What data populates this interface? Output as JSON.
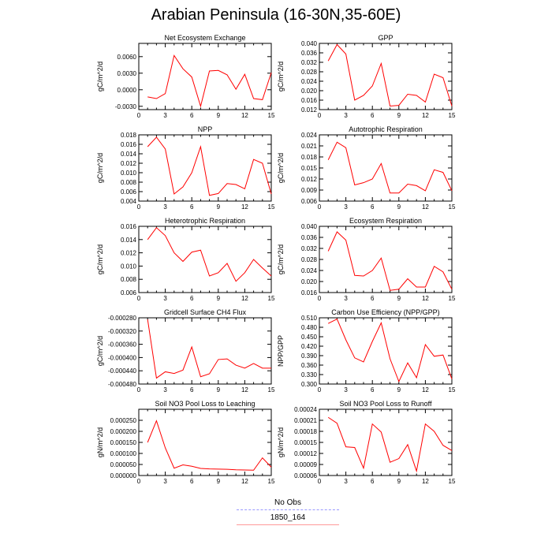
{
  "page": {
    "title": "Arabian Peninsula (16-30N,35-60E)"
  },
  "legend": {
    "entries": [
      {
        "label": "No Obs",
        "color": "#9999ff",
        "style": "dashed"
      },
      {
        "label": "1850_164",
        "color": "#ff9a9a",
        "style": "solid"
      }
    ]
  },
  "chart_data": [
    {
      "type": "line",
      "title": "Net Ecosystem Exchange",
      "ylabel": "gC/m^2/d",
      "xlim": [
        0,
        15
      ],
      "ylim": [
        -0.0036,
        0.0084
      ],
      "xticks": [
        0,
        3,
        6,
        9,
        12,
        15
      ],
      "xtick_labels": [
        "0",
        "3",
        "6",
        "9",
        "12",
        "15"
      ],
      "yticks": [
        -0.003,
        0.0,
        0.003,
        0.006
      ],
      "ytick_labels": [
        "-0.0030",
        "0.0000",
        "0.0030",
        "0.0060"
      ],
      "x": [
        1,
        2,
        3,
        4,
        5,
        6,
        7,
        8,
        9,
        10,
        11,
        12,
        13,
        14,
        15
      ],
      "series": [
        {
          "color": "#ff0000",
          "values": [
            -0.0013,
            -0.0016,
            -0.0007,
            0.0062,
            0.0038,
            0.0023,
            -0.003,
            0.0034,
            0.0035,
            0.0027,
            0.0001,
            0.0028,
            -0.0016,
            -0.0018,
            0.0031
          ]
        }
      ]
    },
    {
      "type": "line",
      "title": "GPP",
      "ylabel": "gC/m^2/d",
      "xlim": [
        0,
        15
      ],
      "ylim": [
        0.012,
        0.04
      ],
      "xticks": [
        0,
        3,
        6,
        9,
        12,
        15
      ],
      "xtick_labels": [
        "0",
        "3",
        "6",
        "9",
        "12",
        "15"
      ],
      "yticks": [
        0.012,
        0.016,
        0.02,
        0.024,
        0.028,
        0.032,
        0.036,
        0.04
      ],
      "ytick_labels": [
        "0.012",
        "0.016",
        "0.020",
        "0.024",
        "0.028",
        "0.032",
        "0.036",
        "0.040"
      ],
      "x": [
        1,
        2,
        3,
        4,
        5,
        6,
        7,
        8,
        9,
        10,
        11,
        12,
        13,
        14,
        15
      ],
      "series": [
        {
          "color": "#ff0000",
          "values": [
            0.0326,
            0.0395,
            0.0355,
            0.016,
            0.018,
            0.022,
            0.0315,
            0.0135,
            0.0138,
            0.0185,
            0.018,
            0.0152,
            0.027,
            0.0255,
            0.0135
          ]
        }
      ]
    },
    {
      "type": "line",
      "title": "NPP",
      "ylabel": "gC/m^2/d",
      "xlim": [
        0,
        15
      ],
      "ylim": [
        0.004,
        0.018
      ],
      "xticks": [
        0,
        3,
        6,
        9,
        12,
        15
      ],
      "xtick_labels": [
        "0",
        "3",
        "6",
        "9",
        "12",
        "15"
      ],
      "yticks": [
        0.004,
        0.006,
        0.008,
        0.01,
        0.012,
        0.014,
        0.016,
        0.018
      ],
      "ytick_labels": [
        "0.004",
        "0.006",
        "0.008",
        "0.010",
        "0.012",
        "0.014",
        "0.016",
        "0.018"
      ],
      "x": [
        1,
        2,
        3,
        4,
        5,
        6,
        7,
        8,
        9,
        10,
        11,
        12,
        13,
        14,
        15
      ],
      "series": [
        {
          "color": "#ff0000",
          "values": [
            0.0155,
            0.0175,
            0.015,
            0.0055,
            0.007,
            0.01,
            0.0155,
            0.0052,
            0.0056,
            0.0077,
            0.0075,
            0.0066,
            0.0128,
            0.012,
            0.0055
          ]
        }
      ]
    },
    {
      "type": "line",
      "title": "Autotrophic Respiration",
      "ylabel": "gC/m^2/d",
      "xlim": [
        0,
        15
      ],
      "ylim": [
        0.006,
        0.024
      ],
      "xticks": [
        0,
        3,
        6,
        9,
        12,
        15
      ],
      "xtick_labels": [
        "0",
        "3",
        "6",
        "9",
        "12",
        "15"
      ],
      "yticks": [
        0.006,
        0.009,
        0.012,
        0.015,
        0.018,
        0.021,
        0.024
      ],
      "ytick_labels": [
        "0.006",
        "0.009",
        "0.012",
        "0.015",
        "0.018",
        "0.021",
        "0.024"
      ],
      "x": [
        1,
        2,
        3,
        4,
        5,
        6,
        7,
        8,
        9,
        10,
        11,
        12,
        13,
        14,
        15
      ],
      "series": [
        {
          "color": "#ff0000",
          "values": [
            0.0172,
            0.022,
            0.0205,
            0.0104,
            0.011,
            0.012,
            0.0162,
            0.0082,
            0.0082,
            0.0106,
            0.0102,
            0.0088,
            0.0145,
            0.0138,
            0.0088
          ]
        }
      ]
    },
    {
      "type": "line",
      "title": "Heterotrophic Respiration",
      "ylabel": "gC/m^2/d",
      "xlim": [
        0,
        15
      ],
      "ylim": [
        0.006,
        0.016
      ],
      "xticks": [
        0,
        3,
        6,
        9,
        12,
        15
      ],
      "xtick_labels": [
        "0",
        "3",
        "6",
        "9",
        "12",
        "15"
      ],
      "yticks": [
        0.006,
        0.008,
        0.01,
        0.012,
        0.014,
        0.016
      ],
      "ytick_labels": [
        "0.006",
        "0.008",
        "0.010",
        "0.012",
        "0.014",
        "0.016"
      ],
      "x": [
        1,
        2,
        3,
        4,
        5,
        6,
        7,
        8,
        9,
        10,
        11,
        12,
        13,
        14,
        15
      ],
      "series": [
        {
          "color": "#ff0000",
          "values": [
            0.014,
            0.0158,
            0.0146,
            0.012,
            0.0107,
            0.0121,
            0.0124,
            0.0085,
            0.009,
            0.0104,
            0.0077,
            0.009,
            0.011,
            0.0097,
            0.0085
          ]
        }
      ]
    },
    {
      "type": "line",
      "title": "Ecosystem Respiration",
      "ylabel": "gC/m^2/d",
      "xlim": [
        0,
        15
      ],
      "ylim": [
        0.016,
        0.04
      ],
      "xticks": [
        0,
        3,
        6,
        9,
        12,
        15
      ],
      "xtick_labels": [
        "0",
        "3",
        "6",
        "9",
        "12",
        "15"
      ],
      "yticks": [
        0.016,
        0.02,
        0.024,
        0.028,
        0.032,
        0.036,
        0.04
      ],
      "ytick_labels": [
        "0.016",
        "0.020",
        "0.024",
        "0.028",
        "0.032",
        "0.036",
        "0.040"
      ],
      "x": [
        1,
        2,
        3,
        4,
        5,
        6,
        7,
        8,
        9,
        10,
        11,
        12,
        13,
        14,
        15
      ],
      "series": [
        {
          "color": "#ff0000",
          "values": [
            0.031,
            0.038,
            0.035,
            0.0222,
            0.022,
            0.024,
            0.0285,
            0.0168,
            0.0172,
            0.021,
            0.018,
            0.018,
            0.0255,
            0.0235,
            0.0172
          ]
        }
      ]
    },
    {
      "type": "line",
      "title": "Gridcell Surface CH4 Flux",
      "ylabel": "gC/m^2/d",
      "xlim": [
        0,
        15
      ],
      "ylim": [
        -0.00048,
        -0.00028
      ],
      "xticks": [
        0,
        3,
        6,
        9,
        12,
        15
      ],
      "xtick_labels": [
        "0",
        "3",
        "6",
        "9",
        "12",
        "15"
      ],
      "yticks": [
        -0.00048,
        -0.00044,
        -0.0004,
        -0.00036,
        -0.00032,
        -0.00028
      ],
      "ytick_labels": [
        "-0.000480",
        "-0.000440",
        "-0.000400",
        "-0.000360",
        "-0.000320",
        "-0.000280"
      ],
      "x": [
        1,
        2,
        3,
        4,
        5,
        6,
        7,
        8,
        9,
        10,
        11,
        12,
        13,
        14,
        15
      ],
      "series": [
        {
          "color": "#ff0000",
          "values": [
            -0.000285,
            -0.000462,
            -0.000443,
            -0.000448,
            -0.000438,
            -0.000368,
            -0.000458,
            -0.000449,
            -0.000406,
            -0.000404,
            -0.000423,
            -0.000432,
            -0.000418,
            -0.000432,
            -0.000432
          ]
        }
      ]
    },
    {
      "type": "line",
      "title": "Carbon Use Efficiency (NPP/GPP)",
      "ylabel": "NPP/GPP",
      "xlim": [
        0,
        15
      ],
      "ylim": [
        0.3,
        0.51
      ],
      "xticks": [
        0,
        3,
        6,
        9,
        12,
        15
      ],
      "xtick_labels": [
        "0",
        "3",
        "6",
        "9",
        "12",
        "15"
      ],
      "yticks": [
        0.3,
        0.33,
        0.36,
        0.39,
        0.42,
        0.45,
        0.48,
        0.51
      ],
      "ytick_labels": [
        "0.300",
        "0.330",
        "0.360",
        "0.390",
        "0.420",
        "0.450",
        "0.480",
        "0.510"
      ],
      "x": [
        1,
        2,
        3,
        4,
        5,
        6,
        7,
        8,
        9,
        10,
        11,
        12,
        13,
        14,
        15
      ],
      "series": [
        {
          "color": "#ff0000",
          "values": [
            0.492,
            0.506,
            0.44,
            0.383,
            0.37,
            0.435,
            0.494,
            0.38,
            0.308,
            0.367,
            0.32,
            0.425,
            0.388,
            0.392,
            0.316
          ]
        }
      ]
    },
    {
      "type": "line",
      "title": "Soil NO3 Pool Loss to Leaching",
      "ylabel": "gN/m^2/d",
      "xlim": [
        0,
        15
      ],
      "ylim": [
        0.0,
        0.0003
      ],
      "xticks": [
        0,
        3,
        6,
        9,
        12,
        15
      ],
      "xtick_labels": [
        "0",
        "3",
        "6",
        "9",
        "12",
        "15"
      ],
      "yticks": [
        0.0,
        5e-05,
        0.0001,
        0.00015,
        0.0002,
        0.00025
      ],
      "ytick_labels": [
        "0.000000",
        "0.000050",
        "0.000100",
        "0.000150",
        "0.000200",
        "0.000250"
      ],
      "x": [
        1,
        2,
        3,
        4,
        5,
        6,
        7,
        8,
        9,
        10,
        11,
        12,
        13,
        14,
        15
      ],
      "series": [
        {
          "color": "#ff0000",
          "values": [
            0.00015,
            0.000248,
            0.000125,
            3.3e-05,
            4.8e-05,
            4.2e-05,
            3.2e-05,
            3e-05,
            2.9e-05,
            2.8e-05,
            2.6e-05,
            2.5e-05,
            2.4e-05,
            8e-05,
            3.8e-05
          ]
        }
      ]
    },
    {
      "type": "line",
      "title": "Soil NO3 Pool Loss to Runoff",
      "ylabel": "gN/m^2/d",
      "xlim": [
        0,
        15
      ],
      "ylim": [
        6e-05,
        0.00024
      ],
      "xticks": [
        0,
        3,
        6,
        9,
        12,
        15
      ],
      "xtick_labels": [
        "0",
        "3",
        "6",
        "9",
        "12",
        "15"
      ],
      "yticks": [
        6e-05,
        9e-05,
        0.00012,
        0.00015,
        0.00018,
        0.00021,
        0.00024
      ],
      "ytick_labels": [
        "0.00006",
        "0.00009",
        "0.00012",
        "0.00015",
        "0.00018",
        "0.00021",
        "0.00024"
      ],
      "x": [
        1,
        2,
        3,
        4,
        5,
        6,
        7,
        8,
        9,
        10,
        11,
        12,
        13,
        14,
        15
      ],
      "series": [
        {
          "color": "#ff0000",
          "values": [
            0.000218,
            0.000202,
            0.000138,
            0.000136,
            8e-05,
            0.0002,
            0.000178,
            9.6e-05,
            0.000106,
            0.000144,
            7.2e-05,
            0.0002,
            0.00018,
            0.000142,
            0.000128
          ]
        }
      ]
    }
  ]
}
